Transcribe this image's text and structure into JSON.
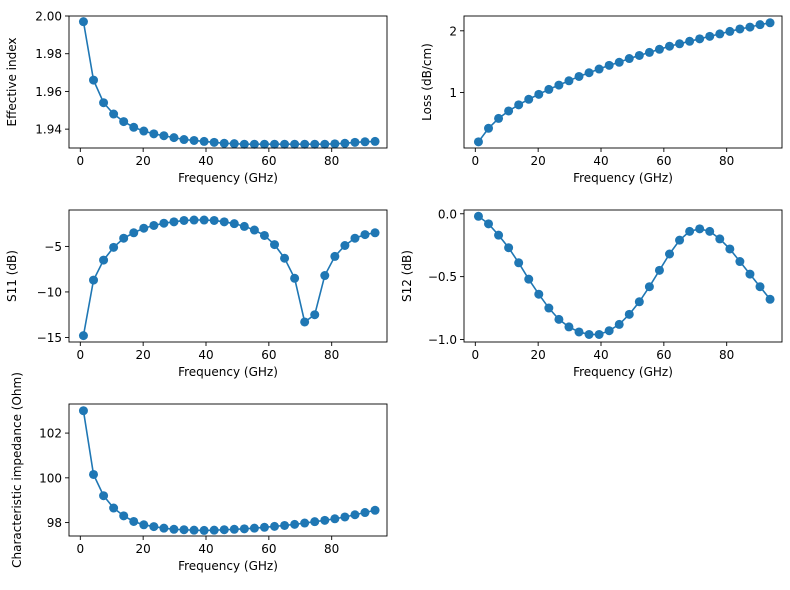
{
  "theme": {
    "series_color": "#1f77b4",
    "background": "#ffffff"
  },
  "chart_data": [
    {
      "type": "line",
      "xlabel": "Frequency (GHz)",
      "ylabel": "Effective index",
      "xlim": [
        -3.6,
        97.6
      ],
      "ylim": [
        1.93,
        2.0
      ],
      "xticks": [
        0,
        20,
        40,
        60,
        80
      ],
      "yticks": [
        1.94,
        1.96,
        1.98,
        2.0
      ],
      "ytick_labels": [
        "1.94",
        "1.96",
        "1.98",
        "2.00"
      ],
      "grid": false,
      "x": [
        1,
        4.2,
        7.4,
        10.6,
        13.8,
        17,
        20.2,
        23.4,
        26.6,
        29.8,
        33,
        36.2,
        39.4,
        42.6,
        45.8,
        49,
        52.2,
        55.4,
        58.6,
        61.8,
        65,
        68.2,
        71.4,
        74.6,
        77.8,
        81,
        84.2,
        87.4,
        90.6,
        93.8
      ],
      "y": [
        1.997,
        1.966,
        1.954,
        1.948,
        1.944,
        1.941,
        1.939,
        1.9375,
        1.9365,
        1.9355,
        1.9345,
        1.934,
        1.9335,
        1.933,
        1.9325,
        1.9323,
        1.932,
        1.932,
        1.932,
        1.932,
        1.932,
        1.932,
        1.932,
        1.932,
        1.932,
        1.9322,
        1.9325,
        1.933,
        1.9333,
        1.9335
      ]
    },
    {
      "type": "line",
      "xlabel": "Frequency (GHz)",
      "ylabel": "Loss (dB/cm)",
      "xlim": [
        -3.6,
        97.6
      ],
      "ylim": [
        0.1,
        2.24
      ],
      "xticks": [
        0,
        20,
        40,
        60,
        80
      ],
      "yticks": [
        1,
        2
      ],
      "ytick_labels": [
        "1",
        "2"
      ],
      "grid": false,
      "x": [
        1,
        4.2,
        7.4,
        10.6,
        13.8,
        17,
        20.2,
        23.4,
        26.6,
        29.8,
        33,
        36.2,
        39.4,
        42.6,
        45.8,
        49,
        52.2,
        55.4,
        58.6,
        61.8,
        65,
        68.2,
        71.4,
        74.6,
        77.8,
        81,
        84.2,
        87.4,
        90.6,
        93.8
      ],
      "y": [
        0.2,
        0.42,
        0.58,
        0.7,
        0.8,
        0.89,
        0.97,
        1.05,
        1.12,
        1.19,
        1.26,
        1.32,
        1.38,
        1.44,
        1.49,
        1.55,
        1.6,
        1.65,
        1.7,
        1.75,
        1.79,
        1.83,
        1.87,
        1.91,
        1.95,
        1.99,
        2.03,
        2.06,
        2.1,
        2.13
      ]
    },
    {
      "type": "line",
      "xlabel": "Frequency (GHz)",
      "ylabel": "S11 (dB)",
      "xlim": [
        -3.6,
        97.6
      ],
      "ylim": [
        -15.5,
        -1.0
      ],
      "xticks": [
        0,
        20,
        40,
        60,
        80
      ],
      "yticks": [
        -15,
        -10,
        -5
      ],
      "ytick_labels": [
        "−15",
        "−10",
        "−5"
      ],
      "grid": false,
      "x": [
        1,
        4.2,
        7.4,
        10.6,
        13.8,
        17,
        20.2,
        23.4,
        26.6,
        29.8,
        33,
        36.2,
        39.4,
        42.6,
        45.8,
        49,
        52.2,
        55.4,
        58.6,
        61.8,
        65,
        68.2,
        71.4,
        74.6,
        77.8,
        81,
        84.2,
        87.4,
        90.6,
        93.8
      ],
      "y": [
        -14.8,
        -8.7,
        -6.5,
        -5.1,
        -4.1,
        -3.5,
        -3.0,
        -2.7,
        -2.45,
        -2.3,
        -2.15,
        -2.1,
        -2.1,
        -2.15,
        -2.3,
        -2.5,
        -2.8,
        -3.2,
        -3.8,
        -4.8,
        -6.3,
        -8.5,
        -13.3,
        -12.5,
        -8.2,
        -6.1,
        -4.9,
        -4.1,
        -3.7,
        -3.5
      ]
    },
    {
      "type": "line",
      "xlabel": "Frequency (GHz)",
      "ylabel": "S12 (dB)",
      "xlim": [
        -3.6,
        97.6
      ],
      "ylim": [
        -1.02,
        0.03
      ],
      "xticks": [
        0,
        20,
        40,
        60,
        80
      ],
      "yticks": [
        -1.0,
        -0.5,
        0.0
      ],
      "ytick_labels": [
        "−1.0",
        "−0.5",
        "0.0"
      ],
      "grid": false,
      "x": [
        1,
        4.2,
        7.4,
        10.6,
        13.8,
        17,
        20.2,
        23.4,
        26.6,
        29.8,
        33,
        36.2,
        39.4,
        42.6,
        45.8,
        49,
        52.2,
        55.4,
        58.6,
        61.8,
        65,
        68.2,
        71.4,
        74.6,
        77.8,
        81,
        84.2,
        87.4,
        90.6,
        93.8
      ],
      "y": [
        -0.02,
        -0.08,
        -0.17,
        -0.27,
        -0.39,
        -0.52,
        -0.64,
        -0.75,
        -0.84,
        -0.9,
        -0.94,
        -0.96,
        -0.96,
        -0.93,
        -0.88,
        -0.8,
        -0.7,
        -0.58,
        -0.45,
        -0.32,
        -0.21,
        -0.14,
        -0.12,
        -0.14,
        -0.2,
        -0.28,
        -0.38,
        -0.48,
        -0.58,
        -0.68
      ]
    },
    {
      "type": "line",
      "xlabel": "Frequency (GHz)",
      "ylabel": "Characteristic impedance (Ohm)",
      "xlim": [
        -3.6,
        97.6
      ],
      "ylim": [
        97.4,
        103.3
      ],
      "xticks": [
        0,
        20,
        40,
        60,
        80
      ],
      "yticks": [
        98,
        100,
        102
      ],
      "ytick_labels": [
        "98",
        "100",
        "102"
      ],
      "grid": false,
      "x": [
        1,
        4.2,
        7.4,
        10.6,
        13.8,
        17,
        20.2,
        23.4,
        26.6,
        29.8,
        33,
        36.2,
        39.4,
        42.6,
        45.8,
        49,
        52.2,
        55.4,
        58.6,
        61.8,
        65,
        68.2,
        71.4,
        74.6,
        77.8,
        81,
        84.2,
        87.4,
        90.6,
        93.8
      ],
      "y": [
        103.0,
        100.15,
        99.2,
        98.65,
        98.3,
        98.05,
        97.9,
        97.82,
        97.75,
        97.7,
        97.68,
        97.66,
        97.65,
        97.66,
        97.68,
        97.7,
        97.72,
        97.75,
        97.79,
        97.83,
        97.87,
        97.92,
        97.98,
        98.04,
        98.1,
        98.17,
        98.25,
        98.35,
        98.45,
        98.55
      ]
    }
  ]
}
